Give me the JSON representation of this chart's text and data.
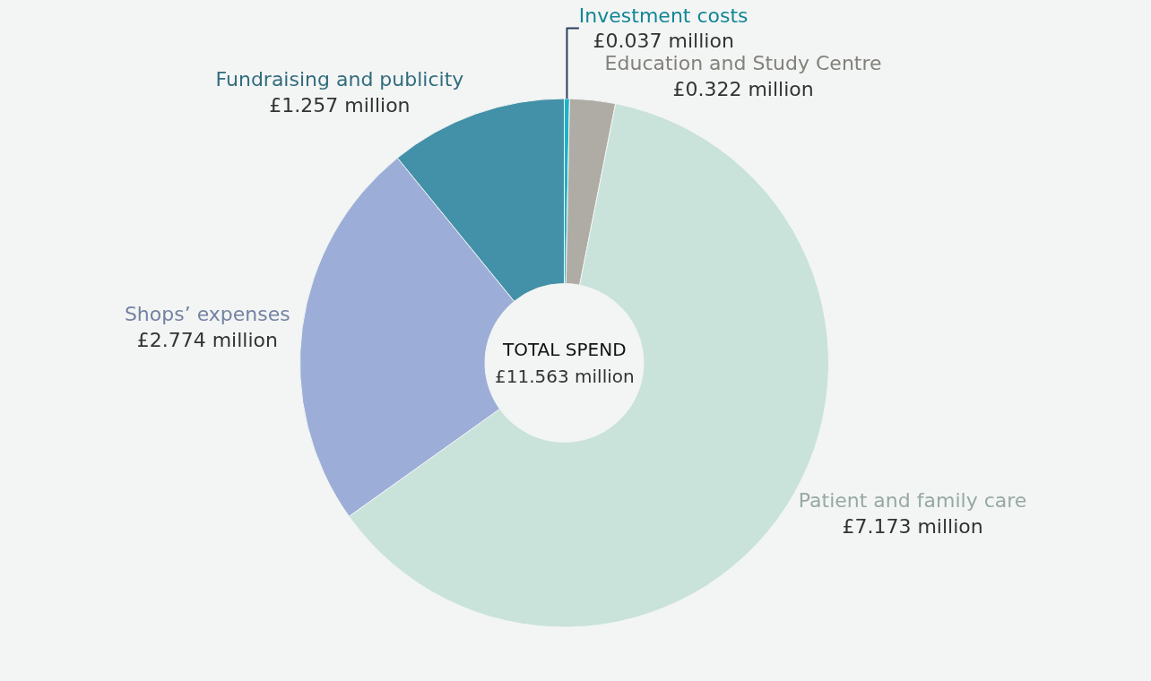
{
  "chart_data": {
    "type": "donut",
    "categories": [
      "Investment costs",
      "Education and Study Centre",
      "Patient and family care",
      "Shops’ expenses",
      "Fundraising and publicity"
    ],
    "values": [
      0.037,
      0.322,
      7.173,
      2.774,
      1.257
    ],
    "value_labels": [
      "£0.037 million",
      "£0.322 million",
      "£7.173 million",
      "£2.774 million",
      "£1.257 million"
    ],
    "colors": [
      "#1ab3c9",
      "#aeaca4",
      "#c9e2da",
      "#9caed8",
      "#4391a8"
    ],
    "annotations": [
      "TOTAL SPEND",
      "£11.563 million"
    ],
    "legend": false
  }
}
